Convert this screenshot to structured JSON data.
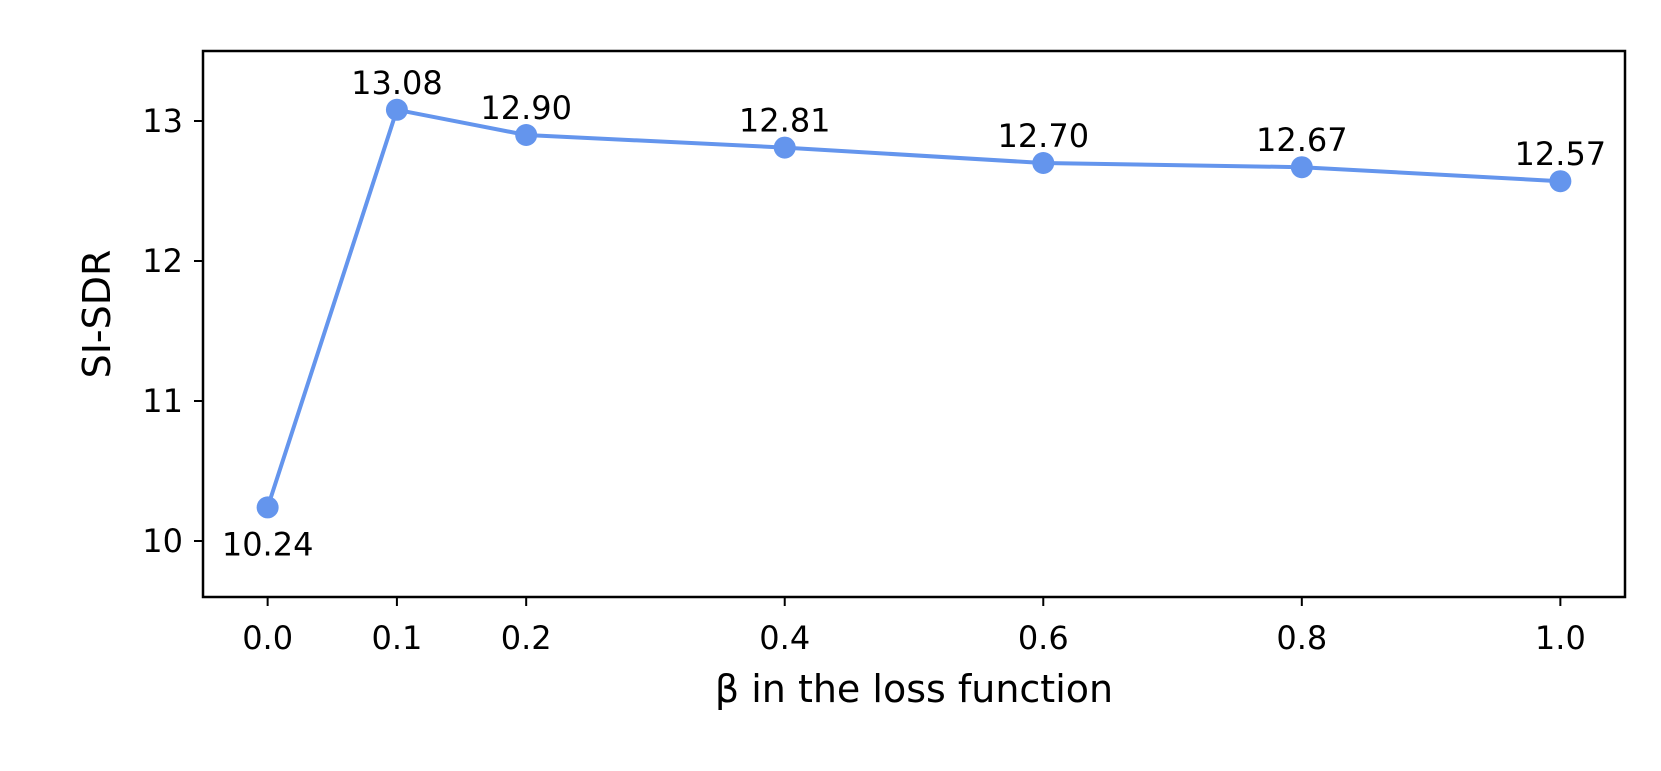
{
  "chart_data": {
    "type": "line",
    "title": "",
    "xlabel": "β in the loss function",
    "ylabel": "SI-SDR",
    "x": [
      0.0,
      0.1,
      0.2,
      0.4,
      0.6,
      0.8,
      1.0
    ],
    "series": [
      {
        "values": [
          10.24,
          13.08,
          12.9,
          12.81,
          12.7,
          12.67,
          12.57
        ],
        "color": "#6495ED",
        "marker": "circle"
      }
    ],
    "data_labels": [
      "10.24",
      "13.08",
      "12.90",
      "12.81",
      "12.70",
      "12.67",
      "12.57"
    ],
    "xticks": [
      0.0,
      0.1,
      0.2,
      0.4,
      0.6,
      0.8,
      1.0
    ],
    "xtick_labels": [
      "0.0",
      "0.1",
      "0.2",
      "0.4",
      "0.6",
      "0.8",
      "1.0"
    ],
    "yticks": [
      10,
      11,
      12,
      13
    ],
    "ytick_labels": [
      "10",
      "11",
      "12",
      "13"
    ],
    "xlim": [
      -0.05,
      1.05
    ],
    "ylim": [
      9.6,
      13.5
    ],
    "grid": false,
    "legend": false
  }
}
